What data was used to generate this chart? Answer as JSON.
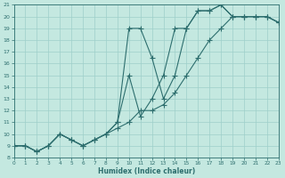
{
  "xlabel": "Humidex (Indice chaleur)",
  "ylabel": "",
  "bg_color": "#c4e8e0",
  "line_color": "#2d6e6e",
  "grid_color": "#9ecfca",
  "xlim": [
    0,
    23
  ],
  "ylim": [
    8,
    21
  ],
  "xticks": [
    0,
    1,
    2,
    3,
    4,
    5,
    6,
    7,
    8,
    9,
    10,
    11,
    12,
    13,
    14,
    15,
    16,
    17,
    18,
    19,
    20,
    21,
    22,
    23
  ],
  "yticks": [
    8,
    9,
    10,
    11,
    12,
    13,
    14,
    15,
    16,
    17,
    18,
    19,
    20,
    21
  ],
  "line1_x": [
    0,
    1,
    2,
    3,
    4,
    5,
    6,
    7,
    8,
    9,
    10,
    11,
    12,
    13,
    14,
    15,
    16,
    17,
    18,
    19,
    20,
    21,
    22,
    23
  ],
  "line1_y": [
    9,
    9,
    8.5,
    9,
    10,
    9.5,
    9,
    9.5,
    10,
    11,
    15,
    11.5,
    13,
    15,
    19,
    19,
    20.5,
    20.5,
    21,
    20,
    20,
    20,
    20,
    19.5
  ],
  "line2_x": [
    0,
    1,
    2,
    3,
    4,
    5,
    6,
    7,
    8,
    9,
    10,
    11,
    12,
    13,
    14,
    15,
    16,
    17,
    18,
    19,
    20,
    21,
    22,
    23
  ],
  "line2_y": [
    9,
    9,
    8.5,
    9,
    10,
    9.5,
    9,
    9.5,
    10,
    11,
    19,
    19,
    16.5,
    13,
    15,
    19,
    20.5,
    20.5,
    21,
    20,
    20,
    20,
    20,
    19.5
  ],
  "line3_x": [
    0,
    1,
    2,
    3,
    4,
    5,
    6,
    7,
    8,
    9,
    10,
    11,
    12,
    13,
    14,
    15,
    16,
    17,
    18,
    19,
    20,
    21,
    22,
    23
  ],
  "line3_y": [
    9,
    9,
    8.5,
    9,
    10,
    9.5,
    9,
    9.5,
    10,
    10.5,
    11,
    12,
    12,
    12.5,
    13.5,
    15,
    16.5,
    18,
    19,
    20,
    20,
    20,
    20,
    19.5
  ]
}
